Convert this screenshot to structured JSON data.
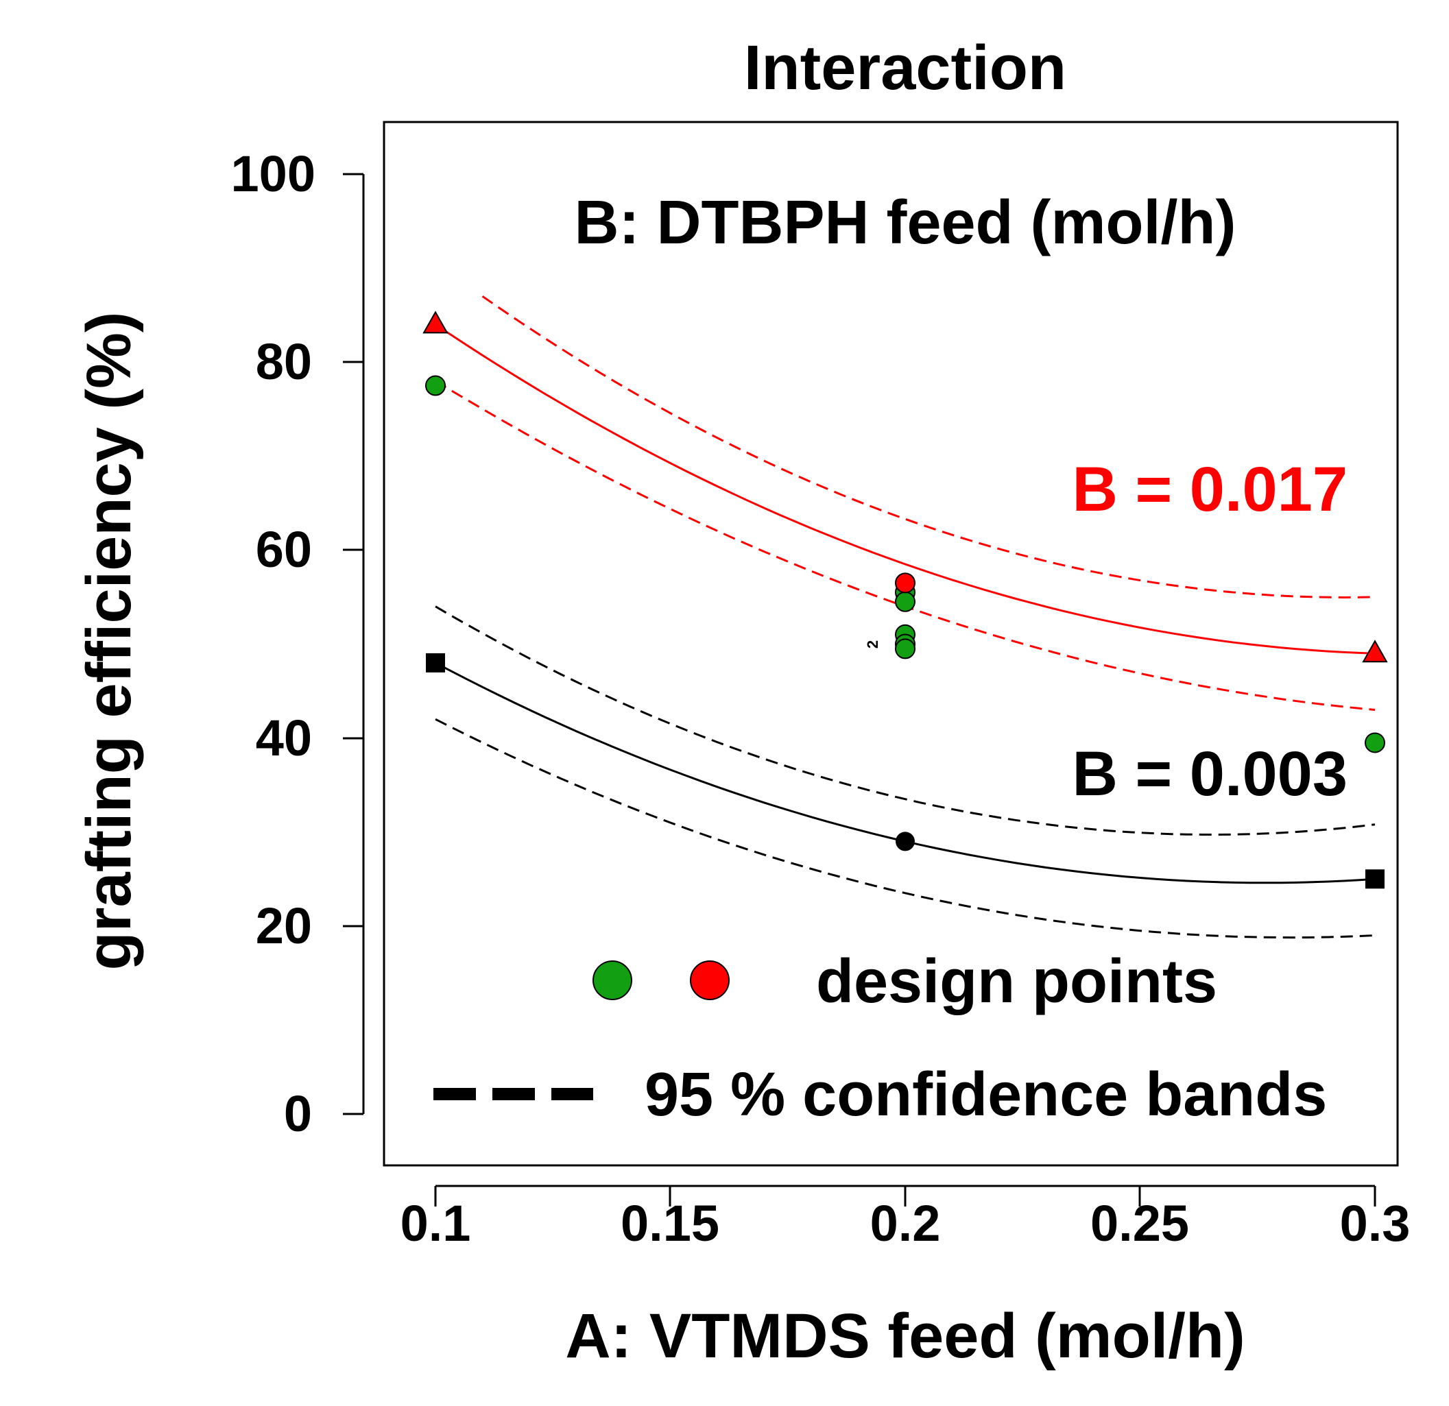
{
  "chart_data": {
    "type": "line",
    "title": "Interaction",
    "xlabel": "A: VTMDS feed (mol/h)",
    "ylabel": "grafting efficiency  (%)",
    "xlim": [
      0.1,
      0.3
    ],
    "ylim": [
      0,
      100
    ],
    "xticks": [
      0.1,
      0.15,
      0.2,
      0.25,
      0.3
    ],
    "xtick_labels": [
      "0.1",
      "0.15",
      "0.2",
      "0.25",
      "0.3"
    ],
    "yticks": [
      0,
      20,
      40,
      60,
      80,
      100
    ],
    "ytick_labels": [
      "0",
      "20",
      "40",
      "60",
      "80",
      "100"
    ],
    "factor_label": "B: DTBPH feed (mol/h)",
    "grid": false,
    "series": [
      {
        "name": "B = 0.017",
        "color": "#ff0000",
        "fit": {
          "x": [
            0.1,
            0.2,
            0.3
          ],
          "y": [
            84,
            58.5,
            49
          ]
        },
        "lower_band": {
          "x": [
            0.1,
            0.2,
            0.3
          ],
          "y": [
            78,
            54,
            43
          ]
        },
        "upper_band": {
          "x": [
            0.11,
            0.2,
            0.3
          ],
          "y": [
            87,
            63.3,
            55
          ]
        },
        "markers": [
          {
            "x": 0.1,
            "y": 84,
            "shape": "triangle"
          },
          {
            "x": 0.3,
            "y": 49,
            "shape": "triangle"
          }
        ]
      },
      {
        "name": "B = 0.003",
        "color": "#000000",
        "fit": {
          "x": [
            0.1,
            0.2,
            0.3
          ],
          "y": [
            48,
            29,
            25
          ]
        },
        "lower_band": {
          "x": [
            0.1,
            0.2,
            0.3
          ],
          "y": [
            42,
            23.5,
            19
          ]
        },
        "upper_band": {
          "x": [
            0.1,
            0.2,
            0.3
          ],
          "y": [
            54,
            33.5,
            30.8
          ]
        },
        "markers": [
          {
            "x": 0.1,
            "y": 48,
            "shape": "square"
          },
          {
            "x": 0.2,
            "y": 29,
            "shape": "circle"
          },
          {
            "x": 0.3,
            "y": 25,
            "shape": "square"
          }
        ]
      }
    ],
    "design_points": [
      {
        "x": 0.1,
        "y": 77.5,
        "color": "#12a012"
      },
      {
        "x": 0.2,
        "y": 55.5,
        "color": "#12a012"
      },
      {
        "x": 0.2,
        "y": 54.5,
        "color": "#12a012"
      },
      {
        "x": 0.2,
        "y": 51,
        "color": "#12a012"
      },
      {
        "x": 0.2,
        "y": 50,
        "color": "#12a012"
      },
      {
        "x": 0.2,
        "y": 49.5,
        "color": "#12a012"
      },
      {
        "x": 0.2,
        "y": 56.5,
        "color": "#ff0000"
      },
      {
        "x": 0.3,
        "y": 39.5,
        "color": "#12a012"
      }
    ],
    "annotations": {
      "b_high": "B = 0.017",
      "b_low": "B = 0.003",
      "point_count": "2"
    },
    "legend": {
      "design_points": "design points",
      "bands": "95 % confidence bands",
      "marker_colors": [
        "#12a012",
        "#ff0000"
      ]
    }
  }
}
